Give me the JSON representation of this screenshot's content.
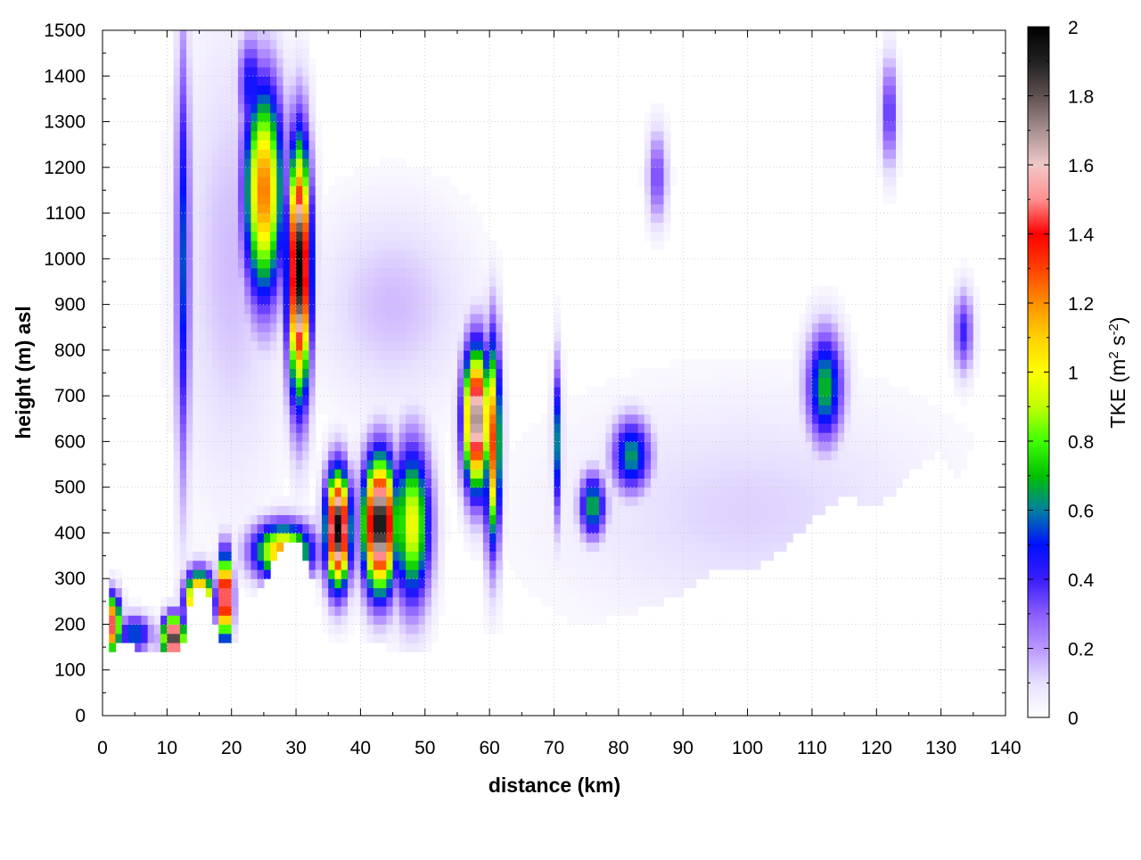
{
  "chart_data": {
    "type": "heatmap",
    "title": "",
    "xlabel": "distance (km)",
    "ylabel": "height (m) asl",
    "xlim": [
      0,
      140
    ],
    "ylim": [
      0,
      1500
    ],
    "x_ticks": [
      "0",
      "10",
      "20",
      "30",
      "40",
      "50",
      "60",
      "70",
      "80",
      "90",
      "100",
      "110",
      "120",
      "130",
      "140"
    ],
    "y_ticks": [
      "0",
      "100",
      "200",
      "300",
      "400",
      "500",
      "600",
      "700",
      "800",
      "900",
      "1000",
      "1100",
      "1200",
      "1300",
      "1400",
      "1500"
    ],
    "grid": true,
    "colorbar": {
      "label_main": "TKE (m",
      "label_sup1": "2",
      "label_mid": " s",
      "label_sup2": "-2",
      "label_end": ")",
      "range": [
        0,
        2
      ],
      "ticks": [
        "0",
        "0.2",
        "0.4",
        "0.6",
        "0.8",
        "1",
        "1.2",
        "1.4",
        "1.6",
        "1.8",
        "2"
      ],
      "colors": [
        "#ffffff",
        "#e8e0ff",
        "#b898ff",
        "#8a5cff",
        "#3a1cff",
        "#0010ff",
        "#0080a0",
        "#00c000",
        "#40ff00",
        "#c0ff00",
        "#ffff00",
        "#ffd000",
        "#ff9000",
        "#ff4000",
        "#ff0000",
        "#ff9090",
        "#f0c8c8",
        "#a89090",
        "#605050",
        "#202020",
        "#000000"
      ]
    },
    "terrain_km_m": [
      [
        0,
        530
      ],
      [
        1,
        140
      ],
      [
        3,
        160
      ],
      [
        5,
        150
      ],
      [
        8,
        145
      ],
      [
        10,
        140
      ],
      [
        11,
        135
      ],
      [
        12,
        140
      ],
      [
        13,
        200
      ],
      [
        14,
        270
      ],
      [
        15,
        290
      ],
      [
        16,
        285
      ],
      [
        17,
        240
      ],
      [
        18,
        170
      ],
      [
        19,
        155
      ],
      [
        20,
        155
      ],
      [
        21,
        170
      ],
      [
        22,
        200
      ],
      [
        24,
        265
      ],
      [
        26,
        320
      ],
      [
        28,
        365
      ],
      [
        29,
        380
      ],
      [
        30,
        380
      ],
      [
        31,
        370
      ],
      [
        33,
        280
      ],
      [
        34,
        130
      ],
      [
        35,
        100
      ],
      [
        36,
        130
      ],
      [
        38,
        150
      ],
      [
        40,
        145
      ],
      [
        42,
        160
      ],
      [
        44,
        150
      ],
      [
        46,
        140
      ],
      [
        48,
        135
      ],
      [
        50,
        140
      ],
      [
        52,
        150
      ],
      [
        55,
        165
      ],
      [
        60,
        180
      ],
      [
        65,
        185
      ],
      [
        70,
        200
      ],
      [
        75,
        195
      ],
      [
        80,
        220
      ],
      [
        85,
        240
      ],
      [
        90,
        270
      ],
      [
        95,
        320
      ],
      [
        100,
        315
      ],
      [
        105,
        360
      ],
      [
        110,
        430
      ],
      [
        115,
        480
      ],
      [
        120,
        450
      ],
      [
        125,
        530
      ],
      [
        130,
        580
      ],
      [
        133,
        520
      ],
      [
        135,
        600
      ],
      [
        138,
        650
      ],
      [
        140,
        730
      ]
    ],
    "blobs": [
      {
        "x": 1.5,
        "y": 200,
        "dx": 1.3,
        "dy": 60,
        "v": 1.5
      },
      {
        "x": 5,
        "y": 180,
        "dx": 2.5,
        "dy": 40,
        "v": 0.6
      },
      {
        "x": 12.5,
        "y": 1000,
        "dx": 1.1,
        "dy": 480,
        "v": 0.55
      },
      {
        "x": 11,
        "y": 170,
        "dx": 1.6,
        "dy": 45,
        "v": 2.0
      },
      {
        "x": 15,
        "y": 250,
        "dx": 2.0,
        "dy": 60,
        "v": 1.8
      },
      {
        "x": 19,
        "y": 260,
        "dx": 1.0,
        "dy": 90,
        "v": 1.9
      },
      {
        "x": 25,
        "y": 1150,
        "dx": 3.0,
        "dy": 230,
        "v": 1.25
      },
      {
        "x": 30.5,
        "y": 980,
        "dx": 1.7,
        "dy": 260,
        "v": 2.0
      },
      {
        "x": 28,
        "y": 360,
        "dx": 4.5,
        "dy": 60,
        "v": 1.2
      },
      {
        "x": 23,
        "y": 1380,
        "dx": 2.0,
        "dy": 110,
        "v": 0.5
      },
      {
        "x": 36.5,
        "y": 410,
        "dx": 1.8,
        "dy": 120,
        "v": 2.0
      },
      {
        "x": 43,
        "y": 420,
        "dx": 2.5,
        "dy": 140,
        "v": 2.0
      },
      {
        "x": 48,
        "y": 420,
        "dx": 2.8,
        "dy": 170,
        "v": 1.0
      },
      {
        "x": 58,
        "y": 650,
        "dx": 2.0,
        "dy": 150,
        "v": 1.8
      },
      {
        "x": 60.5,
        "y": 600,
        "dx": 1.2,
        "dy": 220,
        "v": 1.3
      },
      {
        "x": 70.5,
        "y": 600,
        "dx": 0.7,
        "dy": 170,
        "v": 0.6
      },
      {
        "x": 76,
        "y": 460,
        "dx": 2.0,
        "dy": 70,
        "v": 0.7
      },
      {
        "x": 82,
        "y": 570,
        "dx": 3.0,
        "dy": 80,
        "v": 0.65
      },
      {
        "x": 86,
        "y": 1180,
        "dx": 1.5,
        "dy": 100,
        "v": 0.35
      },
      {
        "x": 112,
        "y": 720,
        "dx": 2.8,
        "dy": 120,
        "v": 0.7
      },
      {
        "x": 122,
        "y": 1320,
        "dx": 1.2,
        "dy": 120,
        "v": 0.4
      },
      {
        "x": 133.5,
        "y": 840,
        "dx": 1.5,
        "dy": 90,
        "v": 0.4
      },
      {
        "x": 20,
        "y": 1000,
        "dx": 8.0,
        "dy": 500,
        "v": 0.15
      },
      {
        "x": 45,
        "y": 900,
        "dx": 12.0,
        "dy": 220,
        "v": 0.15
      },
      {
        "x": 100,
        "y": 450,
        "dx": 30.0,
        "dy": 250,
        "v": 0.12
      }
    ]
  }
}
